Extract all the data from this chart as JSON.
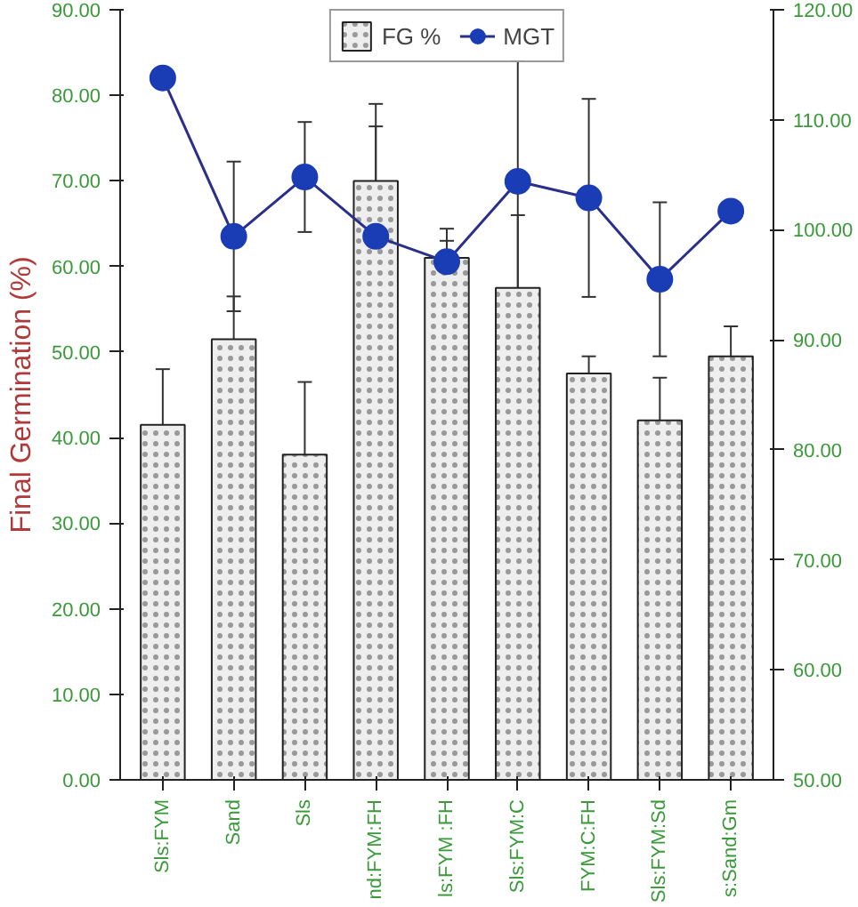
{
  "chart_data": {
    "type": "bar",
    "ylabel": "Final Germination (%)",
    "categories": [
      "Sls:FYM",
      "Sand",
      "Sls",
      "nd:FYM:FH",
      "ls:FYM :FH",
      "Sls:FYM:C",
      "FYM:C:FH",
      "Sls:FYM:Sd",
      "s:Sand:Gm"
    ],
    "series": [
      {
        "name": "FG %",
        "type": "bar",
        "color": "#eeeeee",
        "values": [
          41.5,
          51.5,
          38,
          70,
          61,
          57.5,
          47.5,
          42,
          49.5
        ],
        "errors": [
          6.5,
          5,
          8.5,
          9,
          2,
          8.5,
          2,
          5,
          3.5
        ]
      },
      {
        "name": "MGT",
        "type": "line",
        "axis": "y2",
        "color": "#1a3cb4",
        "values": [
          113.8,
          99.4,
          104.8,
          99.4,
          97.1,
          104.4,
          102.9,
          95.5,
          101.7
        ],
        "errors": [
          null,
          6.8,
          5,
          10,
          3,
          11,
          9,
          7,
          null
        ]
      }
    ],
    "ylim": [
      0,
      90
    ],
    "yticks": [
      {
        "value": 0,
        "label": "0.00"
      },
      {
        "value": 10,
        "label": "10.00"
      },
      {
        "value": 20,
        "label": "20.00"
      },
      {
        "value": 30,
        "label": "30.00"
      },
      {
        "value": 40,
        "label": "40.00"
      },
      {
        "value": 50,
        "label": "50.00"
      },
      {
        "value": 60,
        "label": "60.00"
      },
      {
        "value": 70,
        "label": "70.00"
      },
      {
        "value": 80,
        "label": "80.00"
      },
      {
        "value": 90,
        "label": "90.00"
      }
    ],
    "y2lim": [
      50,
      120
    ],
    "y2ticks": [
      {
        "value": 50,
        "label": "50.00"
      },
      {
        "value": 60,
        "label": "60.00"
      },
      {
        "value": 70,
        "label": "70.00"
      },
      {
        "value": 80,
        "label": "80.00"
      },
      {
        "value": 90,
        "label": "90.00"
      },
      {
        "value": 100,
        "label": "100.00"
      },
      {
        "value": 110,
        "label": "110.00"
      },
      {
        "value": 120,
        "label": "120.00"
      }
    ],
    "marker": "circle",
    "legend": "top",
    "grid": false
  }
}
